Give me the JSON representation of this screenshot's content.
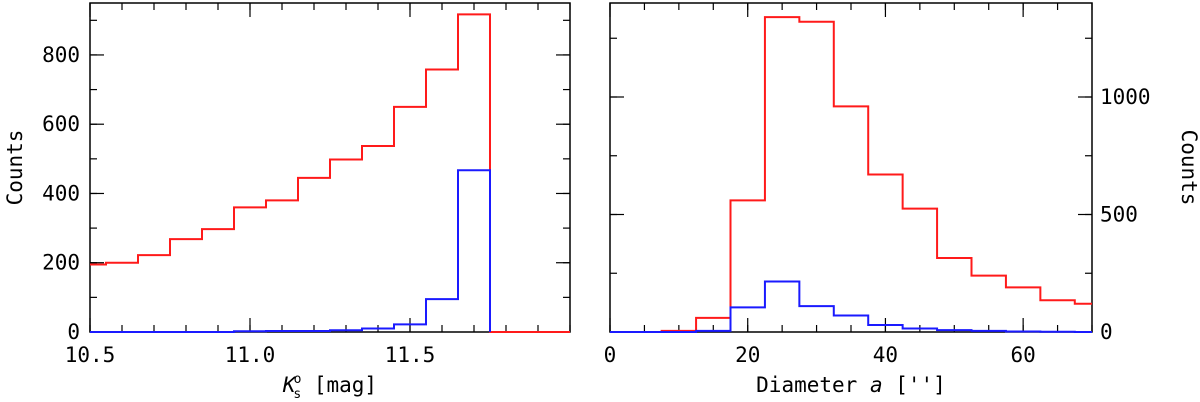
{
  "colors": {
    "red": "#ff1a1a",
    "blue": "#1a1aff",
    "axis": "#000000"
  },
  "chart_data": [
    {
      "type": "histogram",
      "title": "",
      "xlabel_main": "K",
      "xlabel_sub": "s",
      "xlabel_sup": "o",
      "xlabel_rest": " [mag]",
      "ylabel": "Counts",
      "ylabel_side": "left",
      "xlim": [
        10.5,
        12.0
      ],
      "ylim": [
        0,
        950
      ],
      "x_major_ticks": [
        10.5,
        11.0,
        11.5
      ],
      "x_tick_labels": [
        "10.5",
        "11.0",
        "11.5"
      ],
      "x_minor_step": 0.1,
      "y_major_ticks": [
        0,
        200,
        400,
        600,
        800
      ],
      "y_tick_labels": [
        "0",
        "200",
        "400",
        "600",
        "800"
      ],
      "y_minor_step": 100,
      "bin_edges": [
        10.45,
        10.55,
        10.65,
        10.75,
        10.85,
        10.95,
        11.05,
        11.15,
        11.25,
        11.35,
        11.45,
        11.55,
        11.65,
        11.75
      ],
      "series": [
        {
          "color": "red",
          "values": [
            195,
            200,
            222,
            268,
            297,
            360,
            380,
            445,
            498,
            537,
            650,
            758,
            917
          ],
          "drop_to_zero": true,
          "extend_after": 12.0
        },
        {
          "color": "blue",
          "values": [
            0,
            0,
            0,
            0,
            0,
            2,
            3,
            3,
            5,
            10,
            22,
            95,
            467
          ],
          "drop_to_zero": true
        }
      ]
    },
    {
      "type": "histogram",
      "title": "",
      "xlabel_main": "Diameter ",
      "xlabel_italic": "a",
      "xlabel_rest": " ['']",
      "ylabel": "Counts",
      "ylabel_side": "right",
      "xlim": [
        0,
        70
      ],
      "ylim": [
        0,
        1400
      ],
      "x_major_ticks": [
        0,
        20,
        40,
        60
      ],
      "x_tick_labels": [
        "0",
        "20",
        "40",
        "60"
      ],
      "x_minor_step": 5,
      "y_major_ticks": [
        0,
        500,
        1000
      ],
      "y_tick_labels": [
        "0",
        "500",
        "1000"
      ],
      "y_minor_step": 250,
      "bin_edges": [
        0,
        2.5,
        7.5,
        12.5,
        17.5,
        22.5,
        27.5,
        32.5,
        37.5,
        42.5,
        47.5,
        52.5,
        57.5,
        62.5,
        67.5,
        70
      ],
      "series": [
        {
          "color": "red",
          "values": [
            0,
            0,
            5,
            60,
            560,
            1340,
            1320,
            960,
            670,
            525,
            315,
            240,
            190,
            135,
            120
          ]
        },
        {
          "color": "blue",
          "values": [
            0,
            0,
            0,
            5,
            105,
            215,
            110,
            70,
            30,
            15,
            8,
            5,
            2,
            1,
            0
          ]
        }
      ]
    }
  ]
}
